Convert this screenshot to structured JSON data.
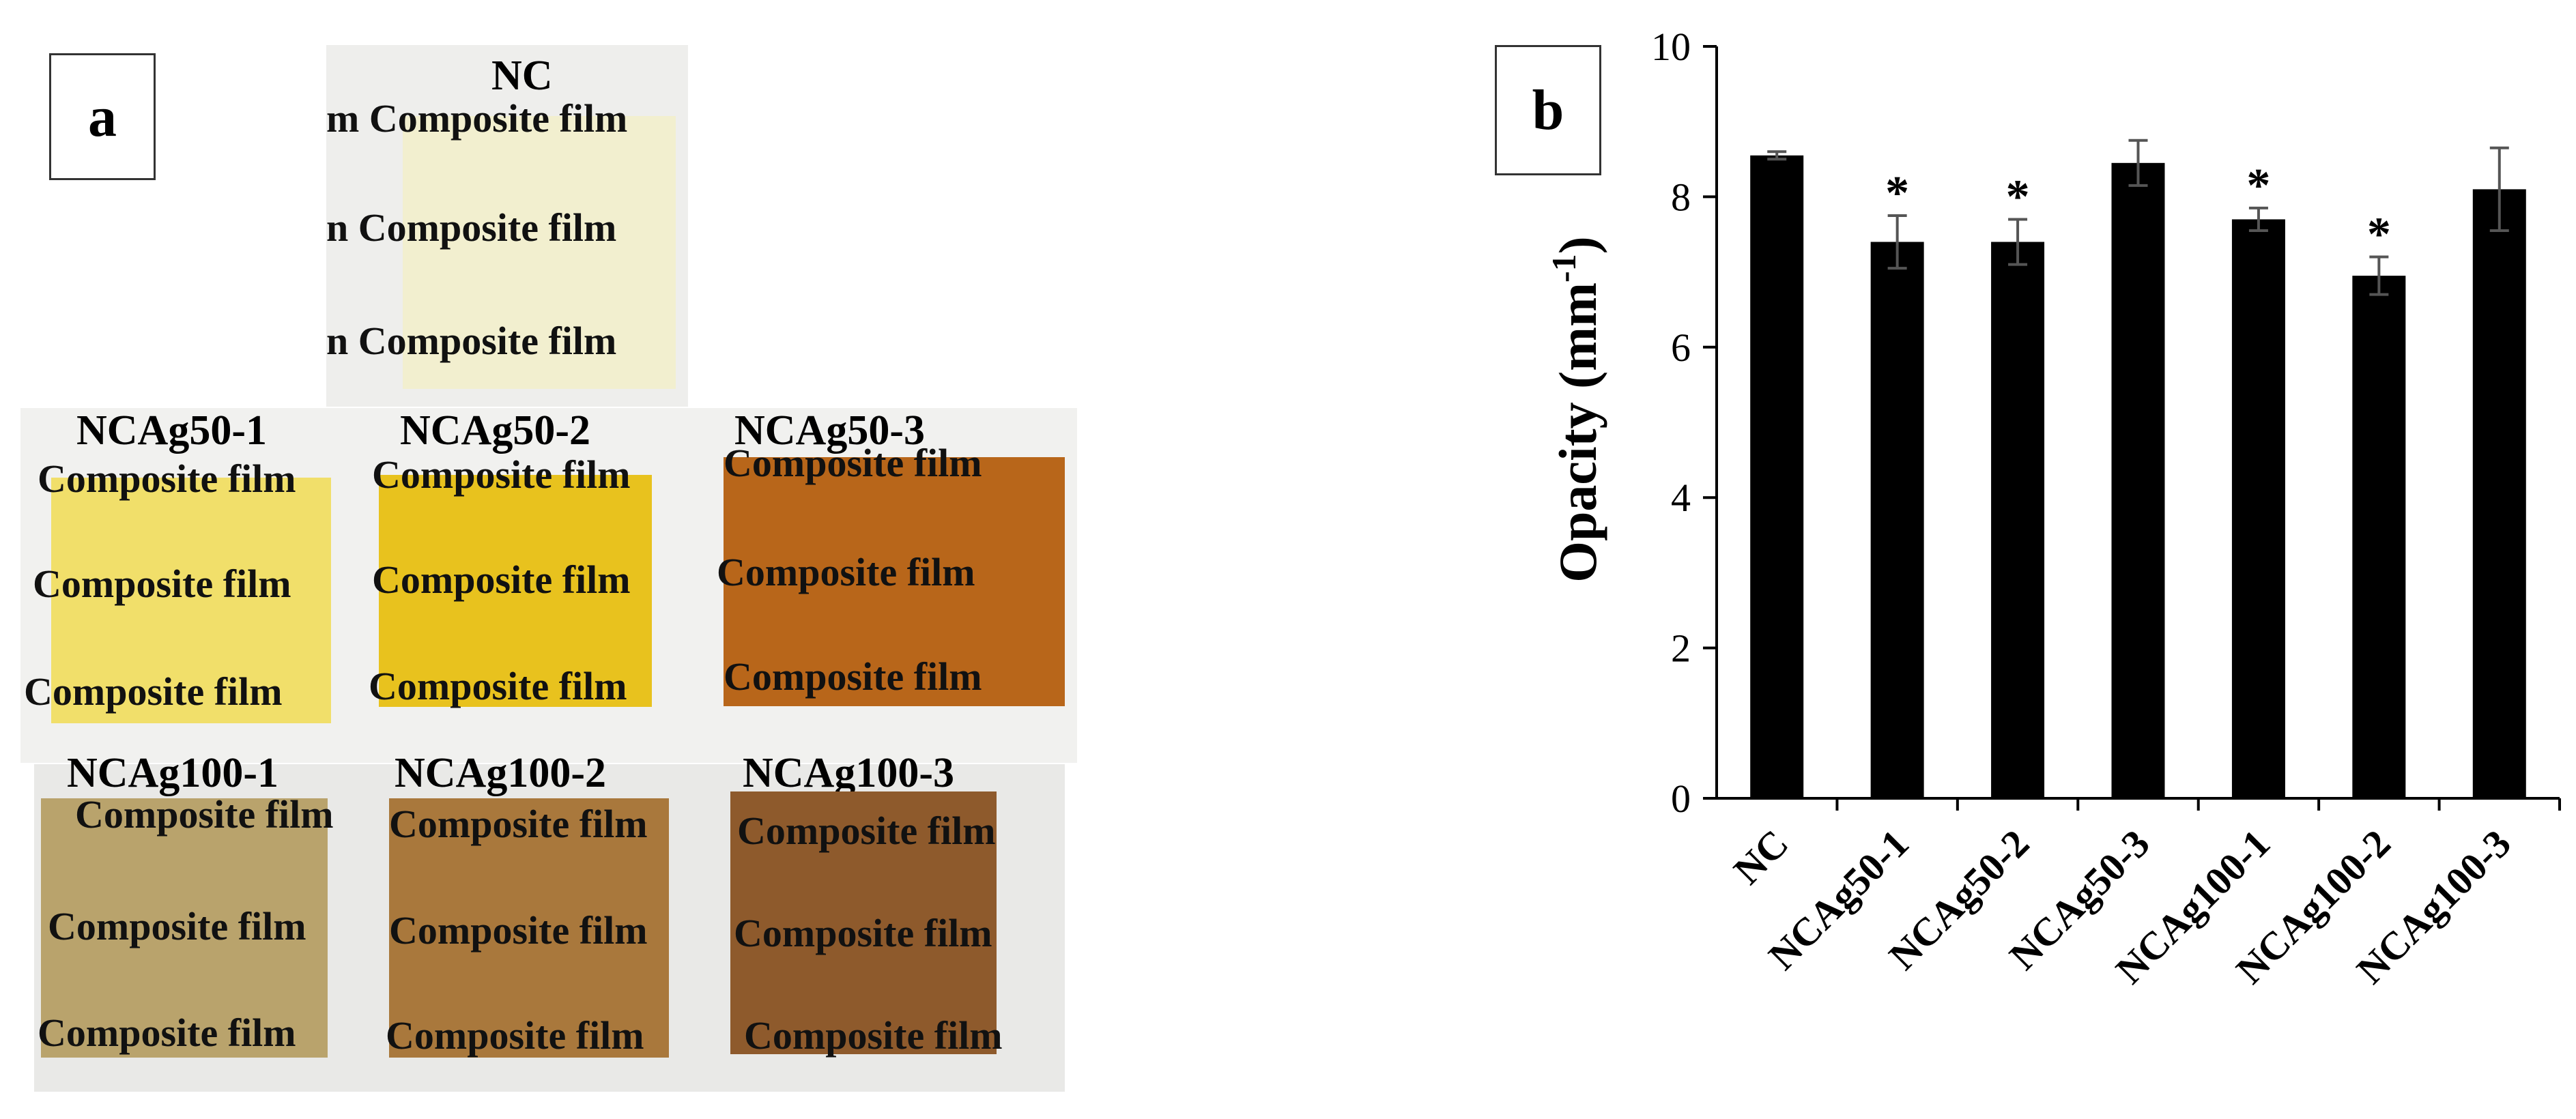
{
  "panel_a": {
    "label": "a",
    "film_line_text": "Composite film",
    "film_line_fragments": [
      "m Composite film",
      "n Composite film",
      "n Composite film"
    ],
    "samples": [
      {
        "name": "NC",
        "color": "#f2efcf"
      },
      {
        "name": "NCAg50-1",
        "color": "#f1df6a"
      },
      {
        "name": "NCAg50-2",
        "color": "#e8c21e"
      },
      {
        "name": "NCAg50-3",
        "color": "#b8661a"
      },
      {
        "name": "NCAg100-1",
        "color": "#b9a36c"
      },
      {
        "name": "NCAg100-2",
        "color": "#a9783c"
      },
      {
        "name": "NCAg100-3",
        "color": "#8e5a2c"
      }
    ]
  },
  "panel_b": {
    "label": "b"
  },
  "chart_data": {
    "type": "bar",
    "title": "",
    "xlabel": "",
    "ylabel": "Opacity (mm",
    "ylabel_superscript": "-1",
    "ylabel_close": ")",
    "categories": [
      "NC",
      "NCAg50-1",
      "NCAg50-2",
      "NCAg50-3",
      "NCAg100-1",
      "NCAg100-2",
      "NCAg100-3"
    ],
    "values": [
      8.55,
      7.4,
      7.4,
      8.45,
      7.7,
      6.95,
      8.1
    ],
    "errors": [
      0.05,
      0.35,
      0.3,
      0.3,
      0.15,
      0.25,
      0.55
    ],
    "significance": [
      "",
      "*",
      "*",
      "",
      "*",
      "*",
      ""
    ],
    "ylim": [
      0,
      10
    ],
    "yticks": [
      0,
      2,
      4,
      6,
      8,
      10
    ],
    "bar_color": "#000000",
    "grid": false
  }
}
